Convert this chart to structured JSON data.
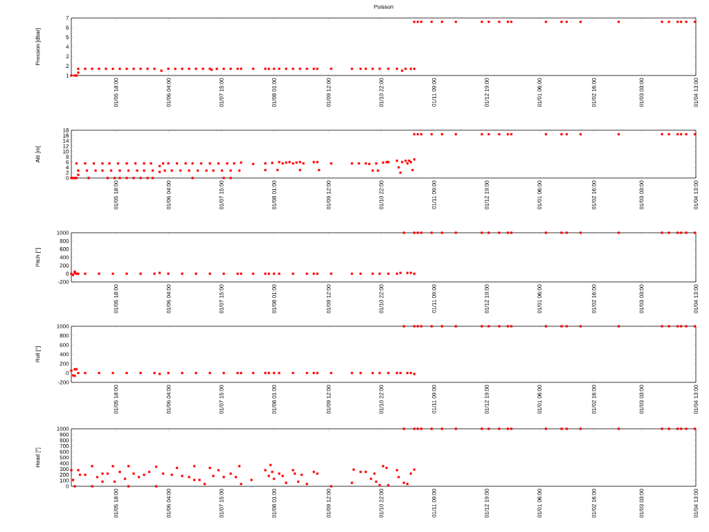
{
  "chart_data": [
    {
      "type": "scatter",
      "title": "Poisson",
      "ylabel": "Pression [dbar]",
      "color": "#ff0000",
      "marker": "square",
      "xlim": [
        "2014-04-06",
        "2015-04-01T13:00"
      ],
      "ylim": [
        1,
        7
      ],
      "yticks": [
        1,
        2,
        3,
        4,
        5,
        6,
        7
      ],
      "xticks": [
        {
          "value": "2014-05-01T18:00",
          "label": "01/05 18:00"
        },
        {
          "value": "2014-06-01T04:00",
          "label": "01/06 04:00"
        },
        {
          "value": "2014-07-01T15:00",
          "label": "01/07 15:00"
        },
        {
          "value": "2014-08-01T01:00",
          "label": "01/08 01:00"
        },
        {
          "value": "2014-09-01T12:00",
          "label": "01/09 12:00"
        },
        {
          "value": "2014-10-01T22:00",
          "label": "01/10 22:00"
        },
        {
          "value": "2014-11-01T09:00",
          "label": "01/11 09:00"
        },
        {
          "value": "2014-12-01T19:00",
          "label": "01/12 19:00"
        },
        {
          "value": "2015-01-01T06:00",
          "label": "01/01 06:00"
        },
        {
          "value": "2015-02-01T16:00",
          "label": "01/02 16:00"
        },
        {
          "value": "2015-03-01T03:00",
          "label": "01/03 03:00"
        },
        {
          "value": "2015-04-01T13:00",
          "label": "01/04 13:00"
        }
      ],
      "x": [
        "2014-04-06",
        "2014-04-08",
        "2014-04-09",
        "2014-04-10",
        "2014-04-10",
        "2014-04-14",
        "2014-04-18",
        "2014-04-22",
        "2014-04-26",
        "2014-04-30",
        "2014-05-04",
        "2014-05-08",
        "2014-05-12",
        "2014-05-16",
        "2014-05-20",
        "2014-05-24",
        "2014-05-28",
        "2014-06-01",
        "2014-06-05",
        "2014-06-09",
        "2014-06-13",
        "2014-06-17",
        "2014-06-21",
        "2014-06-25",
        "2014-06-26",
        "2014-06-29",
        "2014-07-03",
        "2014-07-07",
        "2014-07-11",
        "2014-07-13",
        "2014-07-20",
        "2014-07-27",
        "2014-07-29",
        "2014-08-01",
        "2014-08-04",
        "2014-08-08",
        "2014-08-12",
        "2014-08-16",
        "2014-08-20",
        "2014-08-24",
        "2014-08-26",
        "2014-09-03",
        "2014-09-15",
        "2014-09-20",
        "2014-09-23",
        "2014-09-27",
        "2014-10-01",
        "2014-10-06",
        "2014-10-11",
        "2014-10-14",
        "2014-10-16",
        "2014-10-19",
        "2014-10-21",
        "2014-10-21",
        "2014-10-23",
        "2014-10-25",
        "2014-10-31",
        "2014-11-06",
        "2014-11-14",
        "2014-11-29",
        "2014-12-03",
        "2014-12-09",
        "2014-12-14",
        "2014-12-16",
        "2015-01-05",
        "2015-01-14",
        "2015-01-17",
        "2015-01-25",
        "2015-02-16",
        "2015-03-13",
        "2015-03-17",
        "2015-03-22",
        "2015-03-24",
        "2015-03-27",
        "2015-04-01"
      ],
      "values": [
        1,
        1,
        1,
        1.3,
        1.7,
        1.7,
        1.7,
        1.7,
        1.7,
        1.7,
        1.7,
        1.7,
        1.7,
        1.7,
        1.7,
        1.7,
        1.5,
        1.7,
        1.7,
        1.7,
        1.7,
        1.7,
        1.7,
        1.7,
        1.6,
        1.7,
        1.7,
        1.7,
        1.7,
        1.7,
        1.7,
        1.7,
        1.7,
        1.7,
        1.7,
        1.7,
        1.7,
        1.7,
        1.7,
        1.7,
        1.7,
        1.7,
        1.7,
        1.7,
        1.7,
        1.7,
        1.7,
        1.7,
        1.7,
        1.5,
        1.7,
        1.7,
        1.7,
        6.6,
        6.6,
        6.6,
        6.6,
        6.6,
        6.6,
        6.6,
        6.6,
        6.6,
        6.6,
        6.6,
        6.6,
        6.6,
        6.6,
        6.6,
        6.6,
        6.6,
        6.6,
        6.6,
        6.6,
        6.6,
        6.6
      ]
    },
    {
      "type": "scatter",
      "ylabel": "Alti [m]",
      "color": "#ff0000",
      "marker": "square",
      "xlim": [
        "2014-04-06",
        "2015-04-01T13:00"
      ],
      "ylim": [
        0,
        18
      ],
      "yticks": [
        0,
        2,
        4,
        6,
        8,
        10,
        12,
        14,
        16,
        18
      ],
      "xticks": [
        {
          "value": "2014-05-01T18:00",
          "label": "01/05 18:00"
        },
        {
          "value": "2014-06-01T04:00",
          "label": "01/06 04:00"
        },
        {
          "value": "2014-07-01T15:00",
          "label": "01/07 15:00"
        },
        {
          "value": "2014-08-01T01:00",
          "label": "01/08 01:00"
        },
        {
          "value": "2014-09-01T12:00",
          "label": "01/09 12:00"
        },
        {
          "value": "2014-10-01T22:00",
          "label": "01/10 22:00"
        },
        {
          "value": "2014-11-01T09:00",
          "label": "01/11 09:00"
        },
        {
          "value": "2014-12-01T19:00",
          "label": "01/12 19:00"
        },
        {
          "value": "2015-01-01T06:00",
          "label": "01/01 06:00"
        },
        {
          "value": "2015-02-01T16:00",
          "label": "01/02 16:00"
        },
        {
          "value": "2015-03-01T03:00",
          "label": "01/03 03:00"
        },
        {
          "value": "2015-04-01T13:00",
          "label": "01/04 13:00"
        }
      ],
      "x": [
        "2014-04-06",
        "2014-04-07",
        "2014-04-08",
        "2014-04-09",
        "2014-04-16",
        "2014-04-27",
        "2014-05-01",
        "2014-05-04",
        "2014-05-08",
        "2014-05-12",
        "2014-05-16",
        "2014-05-20",
        "2014-05-23",
        "2014-06-15",
        "2014-07-03",
        "2014-07-07",
        "2014-04-10",
        "2014-04-09",
        "2014-04-14",
        "2014-04-19",
        "2014-04-24",
        "2014-04-28",
        "2014-05-03",
        "2014-05-08",
        "2014-05-13",
        "2014-05-18",
        "2014-05-22",
        "2014-05-27",
        "2014-05-29",
        "2014-06-01",
        "2014-06-06",
        "2014-06-11",
        "2014-06-15",
        "2014-06-20",
        "2014-06-25",
        "2014-06-30",
        "2014-07-05",
        "2014-07-09",
        "2014-07-13",
        "2014-04-10",
        "2014-04-15",
        "2014-04-20",
        "2014-04-24",
        "2014-04-29",
        "2014-05-04",
        "2014-05-09",
        "2014-05-14",
        "2014-05-18",
        "2014-05-23",
        "2014-05-27",
        "2014-05-30",
        "2014-06-03",
        "2014-06-08",
        "2014-06-13",
        "2014-06-18",
        "2014-06-23",
        "2014-06-27",
        "2014-07-02",
        "2014-07-07",
        "2014-07-12",
        "2014-07-20",
        "2014-07-27",
        "2014-07-27",
        "2014-07-31",
        "2014-08-03",
        "2014-08-04",
        "2014-08-06",
        "2014-08-08",
        "2014-08-10",
        "2014-08-12",
        "2014-08-14",
        "2014-08-16",
        "2014-08-16",
        "2014-08-18",
        "2014-08-24",
        "2014-08-26",
        "2014-08-27",
        "2014-09-03",
        "2014-09-15",
        "2014-09-19",
        "2014-09-23",
        "2014-09-25",
        "2014-09-27",
        "2014-09-29",
        "2014-09-30",
        "2014-10-03",
        "2014-10-05",
        "2014-10-06",
        "2014-10-11",
        "2014-10-12",
        "2014-10-13",
        "2014-10-14",
        "2014-10-16",
        "2014-10-17",
        "2014-10-18",
        "2014-10-19",
        "2014-10-20",
        "2014-10-21",
        "2014-10-21",
        "2014-10-23",
        "2014-10-25",
        "2014-10-31",
        "2014-11-06",
        "2014-11-14",
        "2014-11-29",
        "2014-12-03",
        "2014-12-09",
        "2014-12-14",
        "2014-12-16",
        "2015-01-05",
        "2015-01-14",
        "2015-01-17",
        "2015-01-25",
        "2015-02-16",
        "2015-03-13",
        "2015-03-17",
        "2015-03-22",
        "2015-03-24",
        "2015-03-27",
        "2015-04-01"
      ],
      "values": [
        0,
        0,
        0,
        0,
        0,
        0,
        0,
        0,
        0,
        0,
        0,
        0,
        0,
        0,
        0,
        0,
        1.2,
        5.5,
        5.5,
        5.5,
        5.5,
        5.5,
        5.5,
        5.5,
        5.5,
        5.5,
        5.5,
        4.5,
        5.5,
        5.5,
        5.5,
        5.5,
        5.5,
        5.5,
        5.5,
        5.5,
        5.5,
        5.5,
        5.8,
        2.8,
        2.8,
        2.8,
        2.8,
        2.8,
        2.8,
        2.8,
        2.8,
        2.8,
        2.8,
        2.3,
        2.8,
        2.8,
        2.8,
        2.8,
        2.8,
        2.8,
        2.8,
        2.8,
        2.8,
        2.8,
        5.3,
        5.5,
        3,
        5.7,
        3,
        6,
        5.5,
        5.8,
        6,
        5.5,
        5.8,
        6,
        3,
        5.5,
        6,
        6,
        3,
        5.5,
        5.5,
        5.5,
        5.5,
        5.3,
        2.8,
        5.5,
        2.8,
        5.8,
        6,
        6,
        6.5,
        4,
        2,
        6,
        6.5,
        5.5,
        6.5,
        6,
        3,
        7,
        16.5,
        16.5,
        16.5,
        16.5,
        16.5,
        16.5,
        16.5,
        16.5,
        16.5,
        16.5,
        16.5,
        16.5,
        16.5,
        16.5,
        16.5,
        16.5,
        16.5,
        16.5,
        16.5,
        16.5,
        16.5,
        16.5
      ]
    },
    {
      "type": "scatter",
      "ylabel": "Pitch [°]",
      "color": "#ff0000",
      "marker": "square",
      "xlim": [
        "2014-04-06",
        "2015-04-01T13:00"
      ],
      "ylim": [
        -200,
        1000
      ],
      "yticks": [
        -200,
        0,
        200,
        400,
        600,
        800,
        1000
      ],
      "xticks": [
        {
          "value": "2014-05-01T18:00",
          "label": "01/05 18:00"
        },
        {
          "value": "2014-06-01T04:00",
          "label": "01/06 04:00"
        },
        {
          "value": "2014-07-01T15:00",
          "label": "01/07 15:00"
        },
        {
          "value": "2014-08-01T01:00",
          "label": "01/08 01:00"
        },
        {
          "value": "2014-09-01T12:00",
          "label": "01/09 12:00"
        },
        {
          "value": "2014-10-01T22:00",
          "label": "01/10 22:00"
        },
        {
          "value": "2014-11-01T09:00",
          "label": "01/11 09:00"
        },
        {
          "value": "2014-12-01T19:00",
          "label": "01/12 19:00"
        },
        {
          "value": "2015-01-01T06:00",
          "label": "01/01 06:00"
        },
        {
          "value": "2015-02-01T16:00",
          "label": "01/02 16:00"
        },
        {
          "value": "2015-03-01T03:00",
          "label": "01/03 03:00"
        },
        {
          "value": "2015-04-01T13:00",
          "label": "01/04 13:00"
        }
      ],
      "x": [
        "2014-04-06",
        "2014-04-07",
        "2014-04-08",
        "2014-04-08",
        "2014-04-09",
        "2014-04-10",
        "2014-04-14",
        "2014-04-22",
        "2014-04-30",
        "2014-05-08",
        "2014-05-16",
        "2014-05-24",
        "2014-05-27",
        "2014-06-01",
        "2014-06-09",
        "2014-06-17",
        "2014-06-25",
        "2014-07-03",
        "2014-07-11",
        "2014-07-13",
        "2014-07-20",
        "2014-07-27",
        "2014-07-29",
        "2014-08-01",
        "2014-08-04",
        "2014-08-12",
        "2014-08-20",
        "2014-08-24",
        "2014-08-26",
        "2014-09-03",
        "2014-09-15",
        "2014-09-20",
        "2014-09-27",
        "2014-10-01",
        "2014-10-06",
        "2014-10-11",
        "2014-10-13",
        "2014-10-15",
        "2014-10-17",
        "2014-10-19",
        "2014-10-21",
        "2014-10-21",
        "2014-10-23",
        "2014-10-25",
        "2014-10-31",
        "2014-11-06",
        "2014-11-14",
        "2014-11-29",
        "2014-12-03",
        "2014-12-09",
        "2014-12-14",
        "2014-12-16",
        "2015-01-05",
        "2015-01-14",
        "2015-01-17",
        "2015-01-25",
        "2015-02-16",
        "2015-03-13",
        "2015-03-17",
        "2015-03-22",
        "2015-03-24",
        "2015-03-27",
        "2015-04-01"
      ],
      "values": [
        0,
        -30,
        20,
        50,
        0,
        0,
        0,
        0,
        0,
        0,
        0,
        0,
        20,
        0,
        0,
        0,
        0,
        0,
        0,
        0,
        0,
        0,
        0,
        0,
        0,
        0,
        0,
        0,
        0,
        0,
        0,
        0,
        0,
        0,
        0,
        0,
        20,
        1000,
        20,
        20,
        0,
        1000,
        1000,
        1000,
        1000,
        1000,
        1000,
        1000,
        1000,
        1000,
        1000,
        1000,
        1000,
        1000,
        1000,
        1000,
        1000,
        1000,
        1000,
        1000,
        1000,
        1000,
        1000
      ]
    },
    {
      "type": "scatter",
      "ylabel": "Roll [°]",
      "color": "#ff0000",
      "marker": "square",
      "xlim": [
        "2014-04-06",
        "2015-04-01T13:00"
      ],
      "ylim": [
        -200,
        1000
      ],
      "yticks": [
        -200,
        0,
        200,
        400,
        600,
        800,
        1000
      ],
      "xticks": [
        {
          "value": "2014-05-01T18:00",
          "label": "01/05 18:00"
        },
        {
          "value": "2014-06-01T04:00",
          "label": "01/06 04:00"
        },
        {
          "value": "2014-07-01T15:00",
          "label": "01/07 15:00"
        },
        {
          "value": "2014-08-01T01:00",
          "label": "01/08 01:00"
        },
        {
          "value": "2014-09-01T12:00",
          "label": "01/09 12:00"
        },
        {
          "value": "2014-10-01T22:00",
          "label": "01/10 22:00"
        },
        {
          "value": "2014-11-01T09:00",
          "label": "01/11 09:00"
        },
        {
          "value": "2014-12-01T19:00",
          "label": "01/12 19:00"
        },
        {
          "value": "2015-01-01T06:00",
          "label": "01/01 06:00"
        },
        {
          "value": "2015-02-01T16:00",
          "label": "01/02 16:00"
        },
        {
          "value": "2015-03-01T03:00",
          "label": "01/03 03:00"
        },
        {
          "value": "2015-04-01T13:00",
          "label": "01/04 13:00"
        }
      ],
      "x": [
        "2014-04-06",
        "2014-04-07",
        "2014-04-08",
        "2014-04-08",
        "2014-04-09",
        "2014-04-10",
        "2014-04-14",
        "2014-04-22",
        "2014-04-30",
        "2014-05-08",
        "2014-05-16",
        "2014-05-24",
        "2014-05-27",
        "2014-06-01",
        "2014-06-09",
        "2014-06-17",
        "2014-06-25",
        "2014-07-03",
        "2014-07-11",
        "2014-07-13",
        "2014-07-20",
        "2014-07-27",
        "2014-07-29",
        "2014-08-01",
        "2014-08-04",
        "2014-08-12",
        "2014-08-20",
        "2014-08-24",
        "2014-08-26",
        "2014-09-03",
        "2014-09-15",
        "2014-09-20",
        "2014-09-27",
        "2014-10-01",
        "2014-10-06",
        "2014-10-11",
        "2014-10-13",
        "2014-10-15",
        "2014-10-17",
        "2014-10-19",
        "2014-10-21",
        "2014-10-21",
        "2014-10-23",
        "2014-10-25",
        "2014-10-31",
        "2014-11-06",
        "2014-11-14",
        "2014-11-29",
        "2014-12-03",
        "2014-12-09",
        "2014-12-14",
        "2014-12-16",
        "2015-01-05",
        "2015-01-14",
        "2015-01-17",
        "2015-01-25",
        "2015-02-16",
        "2015-03-13",
        "2015-03-17",
        "2015-03-22",
        "2015-03-24",
        "2015-03-27",
        "2015-04-01"
      ],
      "values": [
        50,
        -50,
        80,
        -60,
        80,
        0,
        0,
        0,
        0,
        0,
        0,
        0,
        -20,
        0,
        0,
        0,
        0,
        0,
        0,
        0,
        0,
        0,
        0,
        0,
        0,
        0,
        0,
        0,
        0,
        0,
        0,
        0,
        0,
        0,
        0,
        0,
        0,
        1000,
        0,
        0,
        -20,
        1000,
        1000,
        1000,
        1000,
        1000,
        1000,
        1000,
        1000,
        1000,
        1000,
        1000,
        1000,
        1000,
        1000,
        1000,
        1000,
        1000,
        1000,
        1000,
        1000,
        1000,
        1000
      ]
    },
    {
      "type": "scatter",
      "ylabel": "Head [°]",
      "color": "#ff0000",
      "marker": "square",
      "xlim": [
        "2014-04-06",
        "2015-04-01T13:00"
      ],
      "ylim": [
        0,
        1000
      ],
      "yticks": [
        0,
        100,
        200,
        300,
        400,
        500,
        600,
        700,
        800,
        900,
        1000
      ],
      "xticks": [
        {
          "value": "2014-05-01T18:00",
          "label": "01/05 18:00"
        },
        {
          "value": "2014-06-01T04:00",
          "label": "01/06 04:00"
        },
        {
          "value": "2014-07-01T15:00",
          "label": "01/07 15:00"
        },
        {
          "value": "2014-08-01T01:00",
          "label": "01/08 01:00"
        },
        {
          "value": "2014-09-01T12:00",
          "label": "01/09 12:00"
        },
        {
          "value": "2014-10-01T22:00",
          "label": "01/10 22:00"
        },
        {
          "value": "2014-11-01T09:00",
          "label": "01/11 09:00"
        },
        {
          "value": "2014-12-01T19:00",
          "label": "01/12 19:00"
        },
        {
          "value": "2015-01-01T06:00",
          "label": "01/01 06:00"
        },
        {
          "value": "2015-02-01T16:00",
          "label": "01/02 16:00"
        },
        {
          "value": "2015-03-01T03:00",
          "label": "01/03 03:00"
        },
        {
          "value": "2015-04-01T13:00",
          "label": "01/04 13:00"
        }
      ],
      "x": [
        "2014-04-06",
        "2014-04-07",
        "2014-04-08",
        "2014-04-10",
        "2014-04-11",
        "2014-04-14",
        "2014-04-18",
        "2014-04-18",
        "2014-04-21",
        "2014-04-24",
        "2014-04-24",
        "2014-04-27",
        "2014-04-30",
        "2014-05-01",
        "2014-05-04",
        "2014-05-07",
        "2014-05-09",
        "2014-05-09",
        "2014-05-12",
        "2014-05-15",
        "2014-05-18",
        "2014-05-21",
        "2014-05-25",
        "2014-05-25",
        "2014-05-29",
        "2014-06-03",
        "2014-06-06",
        "2014-06-09",
        "2014-06-13",
        "2014-06-16",
        "2014-06-16",
        "2014-06-19",
        "2014-06-22",
        "2014-06-25",
        "2014-06-27",
        "2014-06-30",
        "2014-07-03",
        "2014-07-07",
        "2014-07-10",
        "2014-07-12",
        "2014-07-13",
        "2014-07-19",
        "2014-07-27",
        "2014-07-29",
        "2014-07-30",
        "2014-07-31",
        "2014-08-01",
        "2014-08-04",
        "2014-08-06",
        "2014-08-08",
        "2014-08-12",
        "2014-08-13",
        "2014-08-15",
        "2014-08-17",
        "2014-08-20",
        "2014-08-24",
        "2014-08-26",
        "2014-09-03",
        "2014-09-15",
        "2014-09-16",
        "2014-09-20",
        "2014-09-23",
        "2014-09-26",
        "2014-09-28",
        "2014-09-29",
        "2014-10-01",
        "2014-10-03",
        "2014-10-05",
        "2014-10-06",
        "2014-10-11",
        "2014-10-12",
        "2014-10-15",
        "2014-10-15",
        "2014-10-17",
        "2014-10-19",
        "2014-10-21",
        "2014-10-21",
        "2014-10-23",
        "2014-10-25",
        "2014-10-31",
        "2014-11-06",
        "2014-11-14",
        "2014-11-29",
        "2014-12-03",
        "2014-12-09",
        "2014-12-14",
        "2014-12-16",
        "2015-01-05",
        "2015-01-14",
        "2015-01-17",
        "2015-01-25",
        "2015-02-16",
        "2015-03-13",
        "2015-03-17",
        "2015-03-22",
        "2015-03-24",
        "2015-03-27",
        "2015-04-01"
      ],
      "values": [
        280,
        110,
        0,
        280,
        200,
        200,
        350,
        0,
        160,
        80,
        220,
        220,
        350,
        80,
        250,
        130,
        0,
        350,
        220,
        160,
        200,
        250,
        0,
        340,
        220,
        200,
        320,
        180,
        160,
        350,
        110,
        110,
        40,
        320,
        180,
        280,
        160,
        220,
        160,
        350,
        40,
        110,
        280,
        180,
        370,
        250,
        130,
        220,
        180,
        60,
        280,
        220,
        80,
        200,
        40,
        250,
        220,
        0,
        60,
        290,
        250,
        250,
        130,
        220,
        80,
        20,
        350,
        320,
        20,
        280,
        160,
        1000,
        60,
        40,
        220,
        290,
        1000,
        1000,
        1000,
        1000,
        1000,
        1000,
        1000,
        1000,
        1000,
        1000,
        1000,
        1000,
        1000,
        1000,
        1000,
        1000,
        1000,
        1000,
        1000,
        1000,
        1000,
        1000
      ]
    }
  ]
}
